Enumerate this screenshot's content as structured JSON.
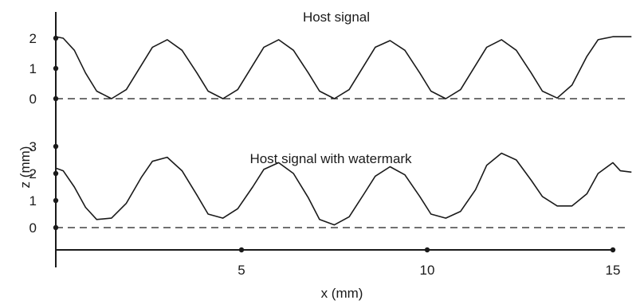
{
  "chart_data": [
    {
      "type": "line",
      "title": "Host signal",
      "xlabel": "x (mm)",
      "ylabel": "z (mm)",
      "xlim": [
        0,
        15.5
      ],
      "ylim": [
        0,
        2
      ],
      "yticks": [
        "0",
        "1",
        "2"
      ],
      "baseline": 0,
      "series": [
        {
          "x": [
            0,
            0.2,
            0.5,
            0.8,
            1.1,
            1.5,
            1.9,
            2.3,
            2.6,
            3.0,
            3.4,
            3.8,
            4.1,
            4.5,
            4.9,
            5.3,
            5.6,
            6.0,
            6.4,
            6.8,
            7.1,
            7.5,
            7.9,
            8.3,
            8.6,
            9.0,
            9.4,
            9.8,
            10.1,
            10.5,
            10.9,
            11.3,
            11.6,
            12.0,
            12.4,
            12.8,
            13.1,
            13.5,
            13.9,
            14.3,
            14.6,
            15.0,
            15.5
          ],
          "y": [
            2.05,
            2.0,
            1.6,
            0.85,
            0.25,
            0.0,
            0.3,
            1.1,
            1.7,
            1.95,
            1.6,
            0.85,
            0.25,
            0.0,
            0.3,
            1.1,
            1.7,
            1.95,
            1.6,
            0.85,
            0.25,
            0.0,
            0.3,
            1.1,
            1.7,
            1.92,
            1.6,
            0.85,
            0.25,
            0.0,
            0.3,
            1.1,
            1.7,
            1.95,
            1.6,
            0.85,
            0.25,
            0.02,
            0.45,
            1.4,
            1.95,
            2.05,
            2.05
          ]
        }
      ]
    },
    {
      "type": "line",
      "title": "Host signal with watermark",
      "xlabel": "x (mm)",
      "ylabel": "z (mm)",
      "xlim": [
        0,
        15.5
      ],
      "ylim": [
        0,
        3
      ],
      "yticks": [
        "0",
        "1",
        "2",
        "3"
      ],
      "xticks": [
        "5",
        "10",
        "15"
      ],
      "baseline": 0,
      "series": [
        {
          "x": [
            0,
            0.2,
            0.5,
            0.8,
            1.1,
            1.5,
            1.9,
            2.3,
            2.6,
            3.0,
            3.4,
            3.8,
            4.1,
            4.5,
            4.9,
            5.3,
            5.6,
            6.0,
            6.4,
            6.8,
            7.1,
            7.5,
            7.9,
            8.3,
            8.6,
            9.0,
            9.4,
            9.8,
            10.1,
            10.5,
            10.9,
            11.3,
            11.6,
            12.0,
            12.4,
            12.8,
            13.1,
            13.5,
            13.9,
            14.3,
            14.6,
            15.0,
            15.2,
            15.5
          ],
          "y": [
            2.2,
            2.1,
            1.5,
            0.75,
            0.3,
            0.35,
            0.9,
            1.85,
            2.45,
            2.6,
            2.1,
            1.2,
            0.5,
            0.35,
            0.7,
            1.5,
            2.15,
            2.4,
            2.0,
            1.1,
            0.3,
            0.1,
            0.4,
            1.25,
            1.9,
            2.25,
            1.95,
            1.15,
            0.5,
            0.35,
            0.6,
            1.4,
            2.3,
            2.75,
            2.5,
            1.75,
            1.15,
            0.8,
            0.8,
            1.25,
            2.0,
            2.4,
            2.1,
            2.05
          ]
        }
      ]
    }
  ]
}
